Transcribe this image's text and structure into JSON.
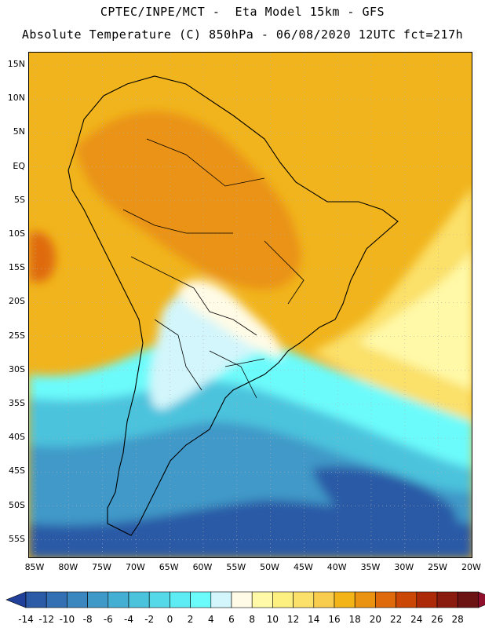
{
  "header": {
    "line1": "CPTEC/INPE/MCT -  Eta Model 15km - GFS",
    "line2": "Absolute Temperature (C) 850hPa - 06/08/2020 12UTC fct=217h"
  },
  "axes": {
    "lat_labels": [
      "15N",
      "10N",
      "5N",
      "EQ",
      "5S",
      "10S",
      "15S",
      "20S",
      "25S",
      "30S",
      "35S",
      "40S",
      "45S",
      "50S",
      "55S"
    ],
    "lon_labels": [
      "85W",
      "80W",
      "75W",
      "70W",
      "65W",
      "60W",
      "55W",
      "50W",
      "45W",
      "40W",
      "35W",
      "30W",
      "25W",
      "20W"
    ]
  },
  "colorbar": {
    "labels": [
      "-14",
      "-12",
      "-10",
      "-8",
      "-6",
      "-4",
      "-2",
      "0",
      "2",
      "4",
      "6",
      "8",
      "10",
      "12",
      "14",
      "16",
      "18",
      "20",
      "22",
      "24",
      "26",
      "28"
    ],
    "colors": [
      "#21409a",
      "#2b5aa6",
      "#3370b3",
      "#3a86be",
      "#3f99c8",
      "#45aed3",
      "#4cc3dd",
      "#55d8e8",
      "#5eecf4",
      "#6cfbfb",
      "#d2f6fb",
      "#fffbe6",
      "#fff9a8",
      "#fdf080",
      "#fbe069",
      "#f8cc4c",
      "#f3b418",
      "#ea9312",
      "#df6a0b",
      "#cb4706",
      "#ad2a09",
      "#8a1c0f",
      "#6c1414",
      "#8f0f2c"
    ]
  },
  "regions": {
    "warm_north": "#f1b41c",
    "hot_core": "#ea9312",
    "yellow_east": "#fbe069",
    "cream": "#fffbe6",
    "pale_cyan": "#d2f6fb",
    "cyan": "#6cfbfb",
    "mid_blue": "#3f99c8",
    "deep_blue": "#2b5aa6",
    "land_line": "#000000"
  }
}
